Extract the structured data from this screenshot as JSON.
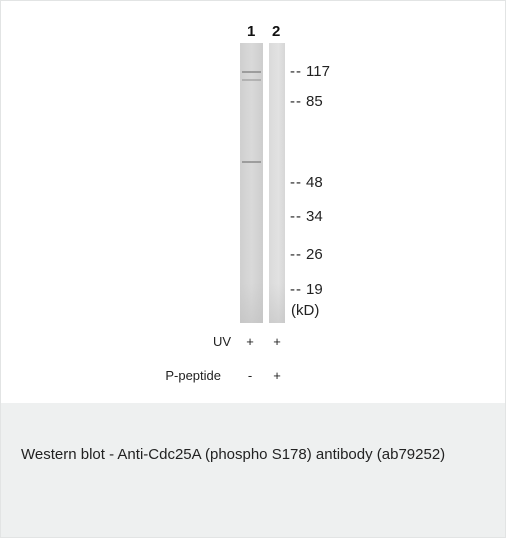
{
  "figure": {
    "lanes": [
      "1",
      "2"
    ],
    "markers": [
      "117",
      "85",
      "48",
      "34",
      "26",
      "19"
    ],
    "unit": "(kD)",
    "conditions": [
      {
        "label": "UV",
        "lane1": "+",
        "lane2": "+"
      },
      {
        "label": "P-peptide",
        "lane1": "-",
        "lane2": "+"
      }
    ]
  },
  "caption": {
    "text": "Western blot - Anti-Cdc25A (phospho S178) antibody (ab79252)"
  }
}
